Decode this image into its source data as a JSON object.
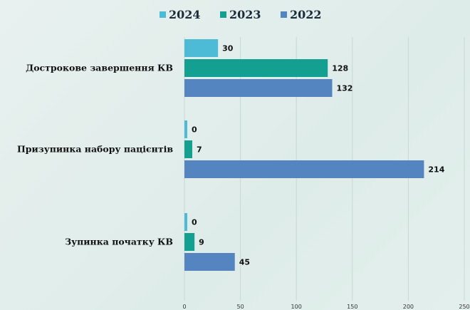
{
  "chart_data": {
    "type": "bar",
    "orientation": "horizontal",
    "categories": [
      "Дострокове завершення КВ",
      "Призупинка набору пацієнтів",
      "Зупинка початку КВ"
    ],
    "series": [
      {
        "name": "2024",
        "color": "#4dbad6",
        "values": [
          30,
          0,
          0
        ]
      },
      {
        "name": "2023",
        "color": "#14a091",
        "values": [
          128,
          7,
          9
        ]
      },
      {
        "name": "2022",
        "color": "#5585c0",
        "values": [
          132,
          214,
          45
        ]
      }
    ],
    "xlim": [
      0,
      250
    ],
    "xticks": [
      "0",
      "50",
      "100",
      "150",
      "200",
      "250"
    ],
    "grid": true,
    "legend": "top-center"
  }
}
